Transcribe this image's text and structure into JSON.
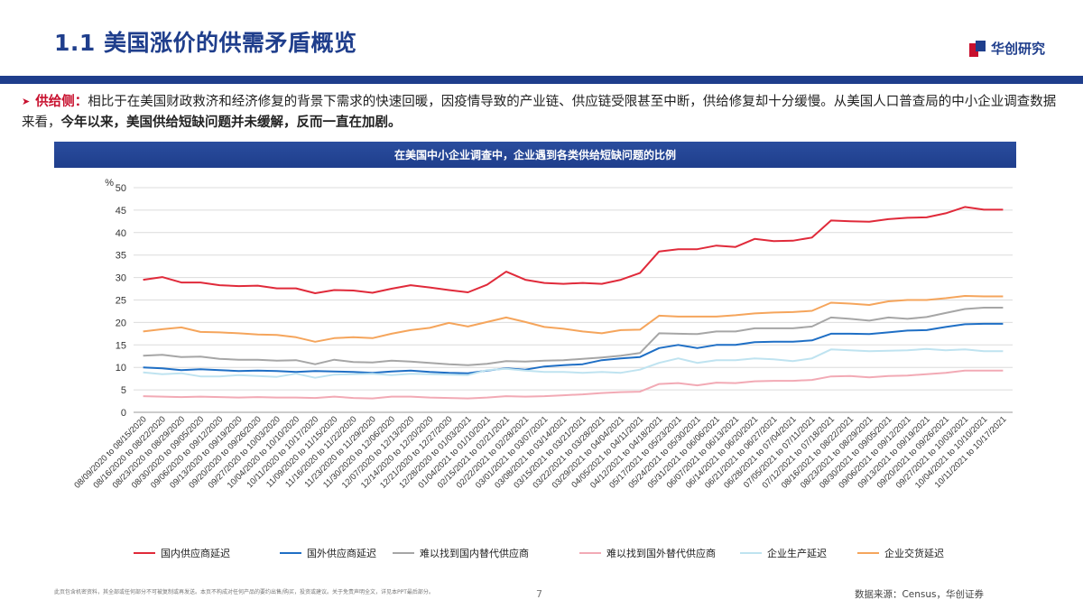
{
  "header": {
    "title": "1.1 美国涨价的供需矛盾概览",
    "logo_text": "华创研究"
  },
  "paragraph": {
    "bullet": "➤",
    "label": "供给侧：",
    "text1": "相比于在美国财政救济和经济修复的背景下需求的快速回暖，因疫情导致的产业链、供应链受限甚至中断，供给修复却十分缓慢。从美国人口普查局的中小企业调查数据来看，",
    "bold": "今年以来，美国供给短缺问题并未缓解，反而一直在加剧。"
  },
  "chart_banner": "在美国中小企业调查中，企业遇到各类供给短缺问题的比例",
  "footer": {
    "disclaimer": "此页包含机密资料，其全部或任何部分不可被复制或再发送。本页不构成对任何产品的要约出售/购买，投资或建议。关于免责声明全文，详见本PPT最后部分。",
    "page": "7",
    "source": "数据来源：Census，华创证券"
  },
  "colors": {
    "primary": "#1f3e8c",
    "accent": "#c8102e"
  },
  "chart_data": {
    "type": "line",
    "title": "在美国中小企业调查中，企业遇到各类供给短缺问题的比例",
    "ylabel": "%",
    "ylim": [
      0,
      50
    ],
    "yticks": [
      0,
      5,
      10,
      15,
      20,
      25,
      30,
      35,
      40,
      45,
      50
    ],
    "legend_position": "bottom",
    "categories": [
      "08/09/2020 to 08/15/2020",
      "08/16/2020 to 08/22/2020",
      "08/23/2020 to 08/29/2020",
      "08/30/2020 to 09/05/2020",
      "09/06/2020 to 09/12/2020",
      "09/13/2020 to 09/19/2020",
      "09/20/2020 to 09/26/2020",
      "09/27/2020 to 10/03/2020",
      "10/04/2020 to 10/10/2020",
      "10/11/2020 to 10/17/2020",
      "11/09/2020 to 11/15/2020",
      "11/16/2020 to 11/22/2020",
      "11/23/2020 to 11/29/2020",
      "11/30/2020 to 12/06/2020",
      "12/07/2020 to 12/13/2020",
      "12/14/2020 to 12/20/2020",
      "12/21/2020 to 12/27/2020",
      "12/28/2020 to 01/03/2021",
      "01/04/2021 to 01/10/2021",
      "02/15/2021 to 02/21/2021",
      "02/22/2021 to 02/28/2021",
      "03/01/2021 to 03/07/2021",
      "03/08/2021 to 03/14/2021",
      "03/15/2021 to 03/21/2021",
      "03/22/2021 to 03/28/2021",
      "03/29/2021 to 04/04/2021",
      "04/05/2021 to 04/11/2021",
      "04/12/2021 to 04/18/2021",
      "05/17/2021 to 05/23/2021",
      "05/24/2021 to 05/30/2021",
      "05/31/2021 to 06/06/2021",
      "06/07/2021 to 06/13/2021",
      "06/14/2021 to 06/20/2021",
      "06/21/2021 to 06/27/2021",
      "06/28/2021 to 07/04/2021",
      "07/05/2021 to 07/11/2021",
      "07/12/2021 to 07/18/2021",
      "08/16/2021 to 08/22/2021",
      "08/23/2021 to 08/29/2021",
      "08/30/2021 to 09/05/2021",
      "09/06/2021 to 09/12/2021",
      "09/13/2021 to 09/19/2021",
      "09/20/2021 to 09/26/2021",
      "09/27/2021 to 10/03/2021",
      "10/04/2021 to 10/10/2021",
      "10/11/2021 to 10/17/2021"
    ],
    "series": [
      {
        "name": "国内供应商延迟",
        "color": "#e02a3a",
        "values": [
          29.5,
          30.1,
          28.9,
          28.9,
          28.3,
          28.1,
          28.2,
          27.6,
          27.6,
          26.5,
          27.2,
          27.1,
          26.6,
          27.5,
          28.3,
          27.8,
          27.2,
          26.7,
          28.4,
          31.3,
          29.5,
          28.8,
          28.6,
          28.8,
          28.6,
          29.5,
          31.0,
          35.8,
          36.3,
          36.3,
          37.1,
          36.8,
          38.6,
          38.1,
          38.2,
          38.9,
          42.7,
          42.5,
          42.4,
          43.0,
          43.3,
          43.4,
          44.3,
          45.7,
          45.1,
          45.1
        ]
      },
      {
        "name": "国外供应商延迟",
        "color": "#1f6fc5",
        "values": [
          10.0,
          9.8,
          9.4,
          9.6,
          9.4,
          9.2,
          9.3,
          9.2,
          9.0,
          9.2,
          9.1,
          9.0,
          8.8,
          9.1,
          9.3,
          9.0,
          8.8,
          8.7,
          9.3,
          9.8,
          9.5,
          10.2,
          10.5,
          10.7,
          11.6,
          12.0,
          12.3,
          14.3,
          15.0,
          14.3,
          15.0,
          15.0,
          15.6,
          15.7,
          15.7,
          16.0,
          17.5,
          17.5,
          17.4,
          17.8,
          18.2,
          18.3,
          19.0,
          19.6,
          19.7,
          19.7
        ]
      },
      {
        "name": "难以找到国内替代供应商",
        "color": "#a6a6a6",
        "values": [
          12.6,
          12.8,
          12.3,
          12.4,
          11.9,
          11.7,
          11.7,
          11.5,
          11.6,
          10.7,
          11.7,
          11.2,
          11.1,
          11.5,
          11.3,
          11.0,
          10.7,
          10.5,
          10.8,
          11.4,
          11.3,
          11.5,
          11.6,
          11.9,
          12.2,
          12.6,
          13.2,
          17.6,
          17.5,
          17.4,
          18.0,
          18.0,
          18.7,
          18.7,
          18.7,
          19.1,
          21.1,
          20.8,
          20.4,
          21.1,
          20.8,
          21.2,
          22.1,
          23.0,
          23.3,
          23.3
        ]
      },
      {
        "name": "难以找到国外替代供应商",
        "color": "#f2aab5",
        "values": [
          3.6,
          3.5,
          3.4,
          3.5,
          3.4,
          3.3,
          3.4,
          3.3,
          3.3,
          3.2,
          3.5,
          3.2,
          3.1,
          3.5,
          3.5,
          3.3,
          3.2,
          3.1,
          3.3,
          3.6,
          3.5,
          3.6,
          3.8,
          4.0,
          4.3,
          4.5,
          4.6,
          6.3,
          6.5,
          6.0,
          6.6,
          6.5,
          6.9,
          7.0,
          7.0,
          7.2,
          8.0,
          8.1,
          7.8,
          8.1,
          8.2,
          8.5,
          8.8,
          9.3,
          9.3,
          9.3
        ]
      },
      {
        "name": "企业生产延迟",
        "color": "#bfe3f0",
        "values": [
          8.9,
          8.5,
          8.7,
          8.0,
          8.0,
          8.3,
          8.1,
          7.9,
          8.6,
          7.7,
          8.4,
          8.5,
          8.6,
          8.3,
          8.6,
          8.5,
          8.4,
          8.3,
          9.4,
          9.7,
          9.3,
          9.0,
          9.0,
          8.8,
          9.0,
          8.8,
          9.5,
          11.0,
          12.0,
          11.0,
          11.6,
          11.6,
          12.0,
          11.8,
          11.4,
          12.0,
          14.0,
          13.8,
          13.6,
          13.7,
          13.8,
          14.1,
          13.8,
          14.0,
          13.6,
          13.6
        ]
      },
      {
        "name": "企业交货延迟",
        "color": "#f5a55c",
        "values": [
          18.0,
          18.5,
          18.9,
          17.9,
          17.8,
          17.6,
          17.3,
          17.2,
          16.7,
          15.7,
          16.5,
          16.7,
          16.5,
          17.5,
          18.3,
          18.8,
          19.9,
          19.1,
          20.1,
          21.1,
          20.1,
          19.0,
          18.6,
          18.0,
          17.6,
          18.3,
          18.4,
          21.5,
          21.3,
          21.3,
          21.3,
          21.6,
          22.0,
          22.2,
          22.3,
          22.6,
          24.4,
          24.2,
          23.9,
          24.7,
          25.0,
          25.0,
          25.4,
          25.9,
          25.8,
          25.8
        ]
      }
    ]
  }
}
